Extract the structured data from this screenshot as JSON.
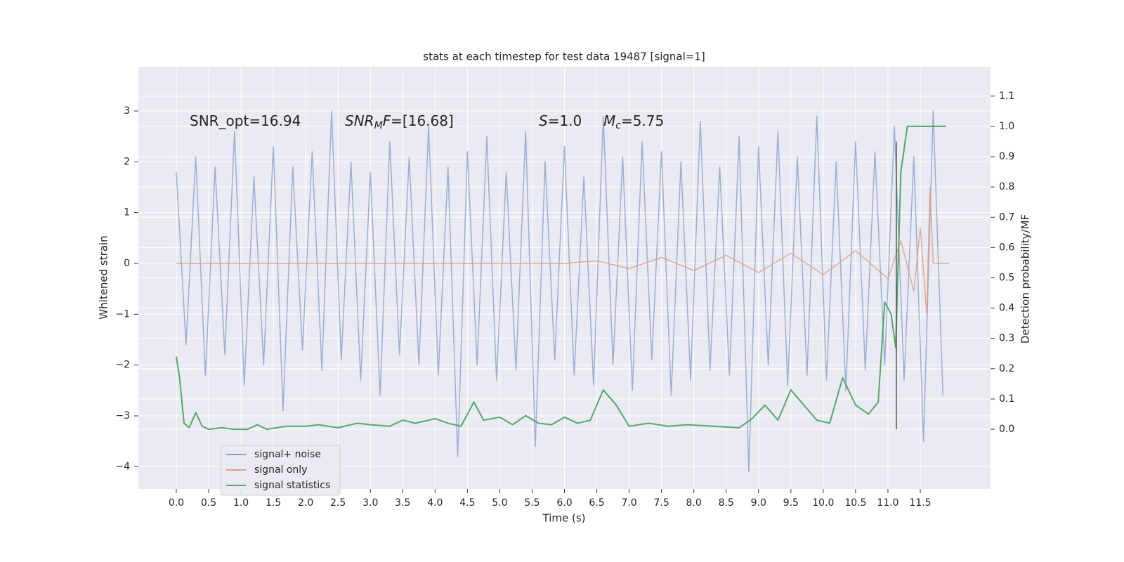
{
  "chart_data": {
    "type": "line",
    "title": "stats at each timestep for test data 19487 [signal=1]",
    "xlabel": "Time (s)",
    "ylabel": "Whitened strain",
    "y2label": "Detection probability/MF",
    "xlim": [
      -0.586,
      12.586
    ],
    "ylim": [
      -4.438,
      3.871
    ],
    "y2lim": [
      -0.197,
      1.197
    ],
    "xticks": [
      {
        "value": 0,
        "label": "0.0"
      },
      {
        "value": 0.5,
        "label": "0.5"
      },
      {
        "value": 1,
        "label": "1.0"
      },
      {
        "value": 1.5,
        "label": "1.5"
      },
      {
        "value": 2,
        "label": "2.0"
      },
      {
        "value": 2.5,
        "label": "2.5"
      },
      {
        "value": 3,
        "label": "3.0"
      },
      {
        "value": 3.5,
        "label": "3.5"
      },
      {
        "value": 4,
        "label": "4.0"
      },
      {
        "value": 4.5,
        "label": "4.5"
      },
      {
        "value": 5,
        "label": "5.0"
      },
      {
        "value": 5.5,
        "label": "5.5"
      },
      {
        "value": 6,
        "label": "6.0"
      },
      {
        "value": 6.5,
        "label": "6.5"
      },
      {
        "value": 7,
        "label": "7.0"
      },
      {
        "value": 7.5,
        "label": "7.5"
      },
      {
        "value": 8,
        "label": "8.0"
      },
      {
        "value": 8.5,
        "label": "8.5"
      },
      {
        "value": 9,
        "label": "9.0"
      },
      {
        "value": 9.5,
        "label": "9.5"
      },
      {
        "value": 10,
        "label": "10.0"
      },
      {
        "value": 10.5,
        "label": "10.5"
      },
      {
        "value": 11,
        "label": "11.0"
      },
      {
        "value": 11.5,
        "label": "11.5"
      }
    ],
    "yticks": [
      {
        "value": -4,
        "label": "−4"
      },
      {
        "value": -3,
        "label": "−3"
      },
      {
        "value": -2,
        "label": "−2"
      },
      {
        "value": -1,
        "label": "−1"
      },
      0,
      1,
      2,
      3
    ],
    "y2ticks": [
      {
        "value": 0,
        "label": "0.0"
      },
      {
        "value": 0.1,
        "label": "0.1"
      },
      {
        "value": 0.2,
        "label": "0.2"
      },
      {
        "value": 0.3,
        "label": "0.3"
      },
      {
        "value": 0.4,
        "label": "0.4"
      },
      {
        "value": 0.5,
        "label": "0.5"
      },
      {
        "value": 0.6,
        "label": "0.6"
      },
      {
        "value": 0.7,
        "label": "0.7"
      },
      {
        "value": 0.8,
        "label": "0.8"
      },
      {
        "value": 0.9,
        "label": "0.9"
      },
      {
        "value": 1,
        "label": "1.0"
      },
      {
        "value": 1.1,
        "label": "1.1"
      }
    ],
    "grid": true,
    "legend": "lower left",
    "annotations": [
      [
        {
          "text": "SNR_opt=16.94",
          "style": "normal"
        }
      ],
      [
        {
          "text": "SNR",
          "style": "italic"
        },
        {
          "text": "M",
          "style": "sub"
        },
        {
          "text": "F",
          "style": "italic"
        },
        {
          "text": "=[16.68]",
          "style": "normal"
        }
      ],
      [
        {
          "text": "S",
          "style": "italic"
        },
        {
          "text": "=1.0",
          "style": "normal"
        }
      ],
      [
        {
          "text": "M",
          "style": "italic"
        },
        {
          "text": "c",
          "style": "sub"
        },
        {
          "text": "=5.75",
          "style": "normal"
        }
      ]
    ],
    "series": [
      {
        "name": "signal+ noise",
        "color": "#8fa3cf",
        "x": [
          0,
          0.15,
          0.3,
          0.45,
          0.6,
          0.75,
          0.9,
          1.05,
          1.2,
          1.35,
          1.5,
          1.65,
          1.8,
          1.95,
          2.1,
          2.25,
          2.4,
          2.55,
          2.7,
          2.85,
          3,
          3.15,
          3.3,
          3.45,
          3.6,
          3.75,
          3.9,
          4.05,
          4.2,
          4.35,
          4.5,
          4.65,
          4.8,
          4.95,
          5.1,
          5.25,
          5.4,
          5.55,
          5.7,
          5.85,
          6,
          6.15,
          6.3,
          6.45,
          6.6,
          6.75,
          6.9,
          7.05,
          7.2,
          7.35,
          7.5,
          7.65,
          7.8,
          7.95,
          8.1,
          8.25,
          8.4,
          8.55,
          8.7,
          8.85,
          9,
          9.15,
          9.3,
          9.45,
          9.6,
          9.75,
          9.9,
          10.05,
          10.2,
          10.35,
          10.5,
          10.65,
          10.8,
          10.95,
          11.1,
          11.25,
          11.4,
          11.55,
          11.7,
          11.85
        ],
        "values": [
          1.8,
          -1.6,
          2.1,
          -2.2,
          1.9,
          -1.8,
          2.6,
          -2.4,
          1.7,
          -2.0,
          2.3,
          -2.9,
          1.9,
          -1.7,
          2.2,
          -2.1,
          3.0,
          -1.9,
          2.0,
          -2.3,
          1.8,
          -2.6,
          2.4,
          -1.8,
          2.1,
          -2.0,
          2.7,
          -2.2,
          1.9,
          -3.8,
          2.2,
          -2.0,
          2.5,
          -2.3,
          1.8,
          -2.1,
          2.6,
          -3.6,
          2.0,
          -1.9,
          2.3,
          -2.2,
          1.7,
          -2.4,
          2.9,
          -2.0,
          2.1,
          -2.5,
          2.4,
          -1.9,
          2.2,
          -2.6,
          2.0,
          -2.3,
          2.8,
          -2.1,
          1.9,
          -2.2,
          2.5,
          -4.1,
          2.3,
          -2.0,
          2.6,
          -2.4,
          2.1,
          -2.2,
          2.9,
          -2.3,
          2.0,
          -2.5,
          2.4,
          -2.1,
          2.2,
          -2.0,
          2.7,
          -2.3,
          2.1,
          -3.5,
          3.0,
          -2.6
        ]
      },
      {
        "name": "signal only",
        "color": "#dd9f86",
        "x": [
          0,
          1,
          2,
          3,
          4,
          5,
          6,
          6.5,
          7,
          7.5,
          8,
          8.5,
          9,
          9.5,
          10,
          10.5,
          11,
          11.2,
          11.4,
          11.5,
          11.6,
          11.65,
          11.7,
          11.95
        ],
        "values": [
          0,
          0,
          0,
          0,
          0,
          0,
          0,
          0.05,
          -0.1,
          0.12,
          -0.14,
          0.16,
          -0.18,
          0.2,
          -0.22,
          0.25,
          -0.3,
          0.45,
          -0.55,
          0.7,
          -1.0,
          1.5,
          0,
          0
        ]
      },
      {
        "name": "signal statistics",
        "color": "#55a868",
        "axis": "y2",
        "x": [
          0,
          0.05,
          0.12,
          0.2,
          0.3,
          0.4,
          0.5,
          0.7,
          0.9,
          1.1,
          1.25,
          1.4,
          1.7,
          2.0,
          2.2,
          2.5,
          2.8,
          3.0,
          3.3,
          3.5,
          3.7,
          4.0,
          4.2,
          4.4,
          4.6,
          4.75,
          5.0,
          5.2,
          5.4,
          5.6,
          5.8,
          6.0,
          6.2,
          6.4,
          6.6,
          6.8,
          7.0,
          7.3,
          7.6,
          7.9,
          8.3,
          8.7,
          8.9,
          9.1,
          9.3,
          9.5,
          9.7,
          9.9,
          10.1,
          10.3,
          10.5,
          10.7,
          10.85,
          10.95,
          11.05,
          11.12,
          11.2,
          11.3,
          11.9
        ],
        "values": [
          0.24,
          0.17,
          0.02,
          0.005,
          0.055,
          0.01,
          0.0,
          0.005,
          0.0,
          0.0,
          0.015,
          0.0,
          0.01,
          0.01,
          0.015,
          0.005,
          0.02,
          0.015,
          0.01,
          0.03,
          0.02,
          0.035,
          0.02,
          0.01,
          0.09,
          0.03,
          0.04,
          0.015,
          0.045,
          0.02,
          0.015,
          0.04,
          0.02,
          0.03,
          0.13,
          0.08,
          0.01,
          0.02,
          0.01,
          0.015,
          0.01,
          0.005,
          0.035,
          0.08,
          0.03,
          0.13,
          0.08,
          0.03,
          0.02,
          0.17,
          0.08,
          0.05,
          0.09,
          0.42,
          0.38,
          0.27,
          0.85,
          1.0,
          1.0
        ]
      }
    ],
    "reference_line": {
      "x": 11.13,
      "y2": [
        0,
        0.95
      ],
      "color": "#555555"
    }
  }
}
